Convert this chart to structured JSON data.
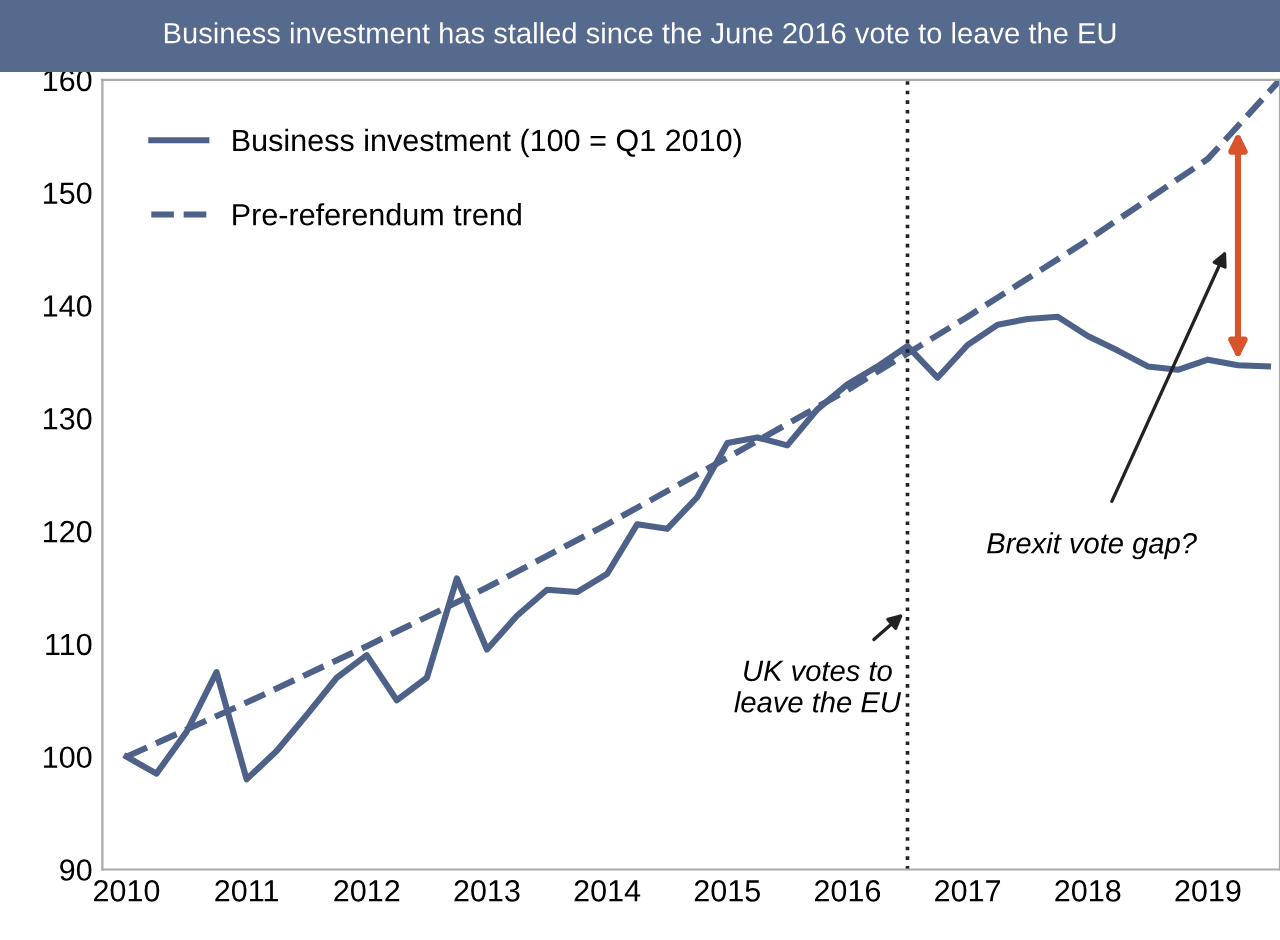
{
  "chart_data": {
    "type": "line",
    "title": "Business investment has stalled since the June 2016 vote to leave the EU",
    "series": [
      {
        "name": "Business investment (100 = Q1 2010)",
        "color": "#4d6189",
        "line_style": "solid",
        "x": [
          2010,
          2010.25,
          2010.5,
          2010.75,
          2011,
          2011.25,
          2011.5,
          2011.75,
          2012,
          2012.25,
          2012.5,
          2012.75,
          2013,
          2013.25,
          2013.5,
          2013.75,
          2014,
          2014.25,
          2014.5,
          2014.75,
          2015,
          2015.25,
          2015.5,
          2015.75,
          2016,
          2016.25,
          2016.5,
          2016.75,
          2017,
          2017.25,
          2017.5,
          2017.75,
          2018,
          2018.25,
          2018.5,
          2018.75,
          2019,
          2019.25,
          2019.5
        ],
        "values": [
          100,
          98.5,
          102.2,
          107.5,
          98,
          100.5,
          103.7,
          107,
          109,
          105,
          107,
          115.8,
          109.5,
          112.5,
          114.8,
          114.6,
          116.2,
          120.6,
          120.2,
          123,
          127.8,
          128.3,
          127.6,
          130.8,
          133,
          134.6,
          136.4,
          133.6,
          136.5,
          138.3,
          138.8,
          139,
          137.3,
          136,
          134.6,
          134.3,
          135.2,
          134.7,
          134.6
        ]
      },
      {
        "name": "Pre-referendum trend",
        "color": "#4d6189",
        "line_style": "dashed",
        "x": [
          2010,
          2011,
          2012,
          2013,
          2014,
          2015,
          2016,
          2017,
          2018,
          2019,
          2019.6
        ],
        "values": [
          100,
          104.8,
          109.8,
          115,
          120.6,
          126.5,
          132.5,
          139,
          145.8,
          153,
          160
        ]
      }
    ],
    "xlim": [
      2009.8,
      2019.6
    ],
    "ylim": [
      90,
      160
    ],
    "xticks": [
      2010,
      2011,
      2012,
      2013,
      2014,
      2015,
      2016,
      2017,
      2018,
      2019
    ],
    "yticks": [
      90,
      100,
      110,
      120,
      130,
      140,
      150,
      160
    ],
    "ref_lines": [
      {
        "axis": "x",
        "value": 2016.5,
        "color": "#222222",
        "line_style": "dotted"
      }
    ],
    "annotations": [
      {
        "text": "UK votes to\nleave the EU",
        "x": 2016.5,
        "y": 113
      },
      "Brexit vote gap?"
    ],
    "legend": "top left",
    "grid": false
  }
}
